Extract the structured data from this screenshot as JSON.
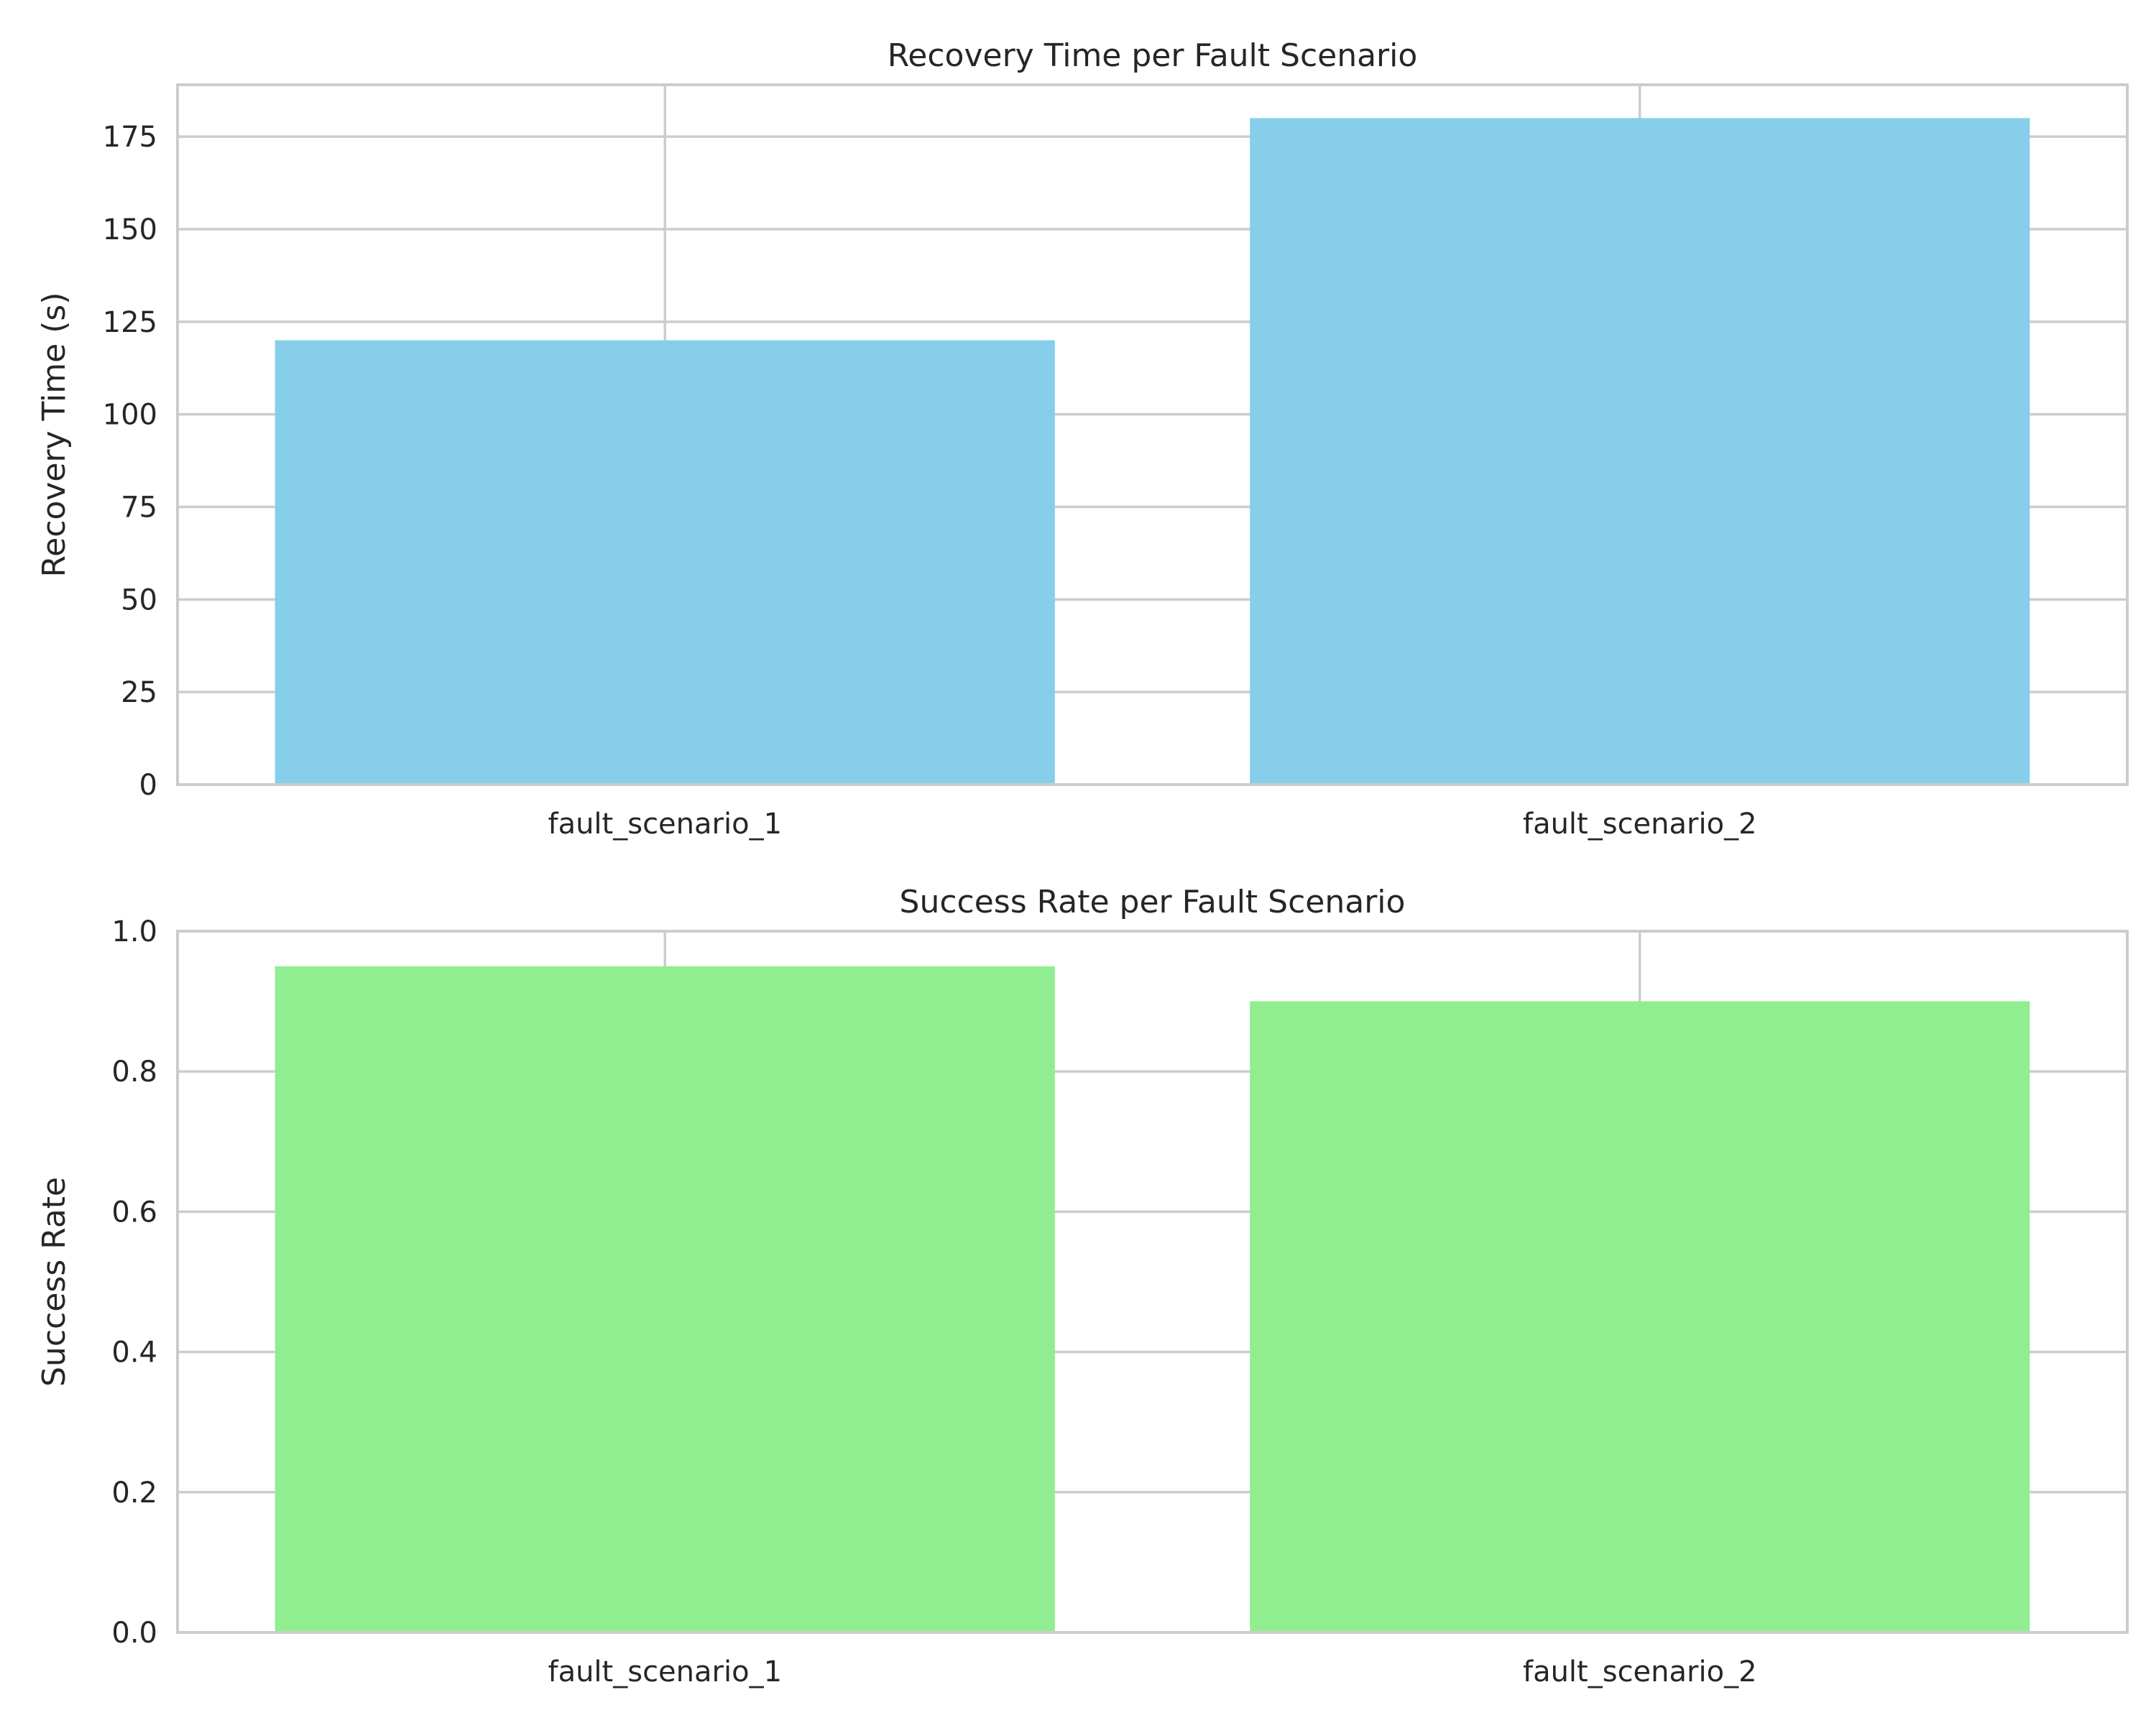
{
  "chart_data": [
    {
      "type": "bar",
      "title": "Recovery Time per Fault Scenario",
      "xlabel": "",
      "ylabel": "Recovery Time (s)",
      "categories": [
        "fault_scenario_1",
        "fault_scenario_2"
      ],
      "values": [
        120,
        180
      ],
      "ylim": [
        0,
        189
      ],
      "yticks": [
        0,
        25,
        50,
        75,
        100,
        125,
        150,
        175
      ],
      "ytick_labels": [
        "0",
        "25",
        "50",
        "75",
        "100",
        "125",
        "150",
        "175"
      ],
      "bar_color": "#87CEEB",
      "grid": true
    },
    {
      "type": "bar",
      "title": "Success Rate per Fault Scenario",
      "xlabel": "",
      "ylabel": "Success Rate",
      "categories": [
        "fault_scenario_1",
        "fault_scenario_2"
      ],
      "values": [
        0.95,
        0.9
      ],
      "ylim": [
        0,
        1.0
      ],
      "yticks": [
        0.0,
        0.2,
        0.4,
        0.6,
        0.8,
        1.0
      ],
      "ytick_labels": [
        "0.0",
        "0.2",
        "0.4",
        "0.6",
        "0.8",
        "1.0"
      ],
      "bar_color": "#90EE90",
      "grid": true
    }
  ]
}
